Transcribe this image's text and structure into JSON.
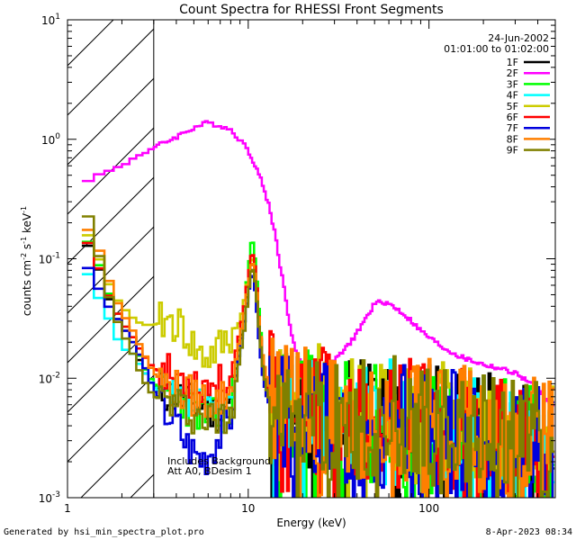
{
  "chart_data": {
    "type": "line",
    "title": "Count Spectra for RHESSI Front Segments",
    "xlabel": "Energy (keV)",
    "ylabel_base": "counts cm",
    "ylabel_exp1": "-2",
    "ylabel_mid": " s",
    "ylabel_exp2": "-1",
    "ylabel_end": " keV",
    "ylabel_exp3": "-1",
    "x_scale": "log",
    "y_scale": "log",
    "xlim": [
      1,
      500
    ],
    "ylim": [
      0.001,
      10
    ],
    "x_ticks": [
      {
        "value": 1,
        "label": "1"
      },
      {
        "value": 10,
        "label": "10"
      },
      {
        "value": 100,
        "label": "100"
      }
    ],
    "y_ticks": [
      {
        "value": 0.001,
        "base": "10",
        "exp": "-3"
      },
      {
        "value": 0.01,
        "base": "10",
        "exp": "-2"
      },
      {
        "value": 0.1,
        "base": "10",
        "exp": "-1"
      },
      {
        "value": 1,
        "base": "10",
        "exp": "0"
      },
      {
        "value": 10,
        "base": "10",
        "exp": "1"
      }
    ],
    "hatched_region_keV": [
      1,
      3
    ],
    "date": "24-Jun-2002",
    "time_range": "01:01:00 to 01:02:00",
    "annotation_lines": [
      "Includes Background",
      "Att A0, BDesim 1"
    ],
    "series": [
      {
        "name": "1F",
        "color": "#000000",
        "seed": 11,
        "base": 0.0,
        "x": [
          1.2,
          1.4,
          1.6,
          1.8,
          2.0,
          2.3,
          2.6,
          3.0,
          3.5,
          4.0,
          4.5,
          5.0,
          5.5,
          6.0,
          7.0,
          8.0,
          9.0,
          9.5,
          10.0,
          10.5,
          11.0,
          11.5,
          12.0,
          12.5,
          13.0,
          14.0,
          16.0,
          20.0,
          30.0,
          40.0,
          60.0,
          80.0,
          100.0,
          150.0,
          200.0,
          300.0,
          400.0,
          500.0
        ],
        "y": [
          0.15,
          0.11,
          0.06,
          0.035,
          0.028,
          0.02,
          0.012,
          0.0085,
          0.0075,
          0.007,
          0.0065,
          0.006,
          0.0058,
          0.0055,
          0.0052,
          0.006,
          0.02,
          0.03,
          0.06,
          0.1,
          0.07,
          0.03,
          0.015,
          0.01,
          0.008,
          0.0065,
          0.006,
          0.0055,
          0.005,
          0.0048,
          0.0045,
          0.0042,
          0.004,
          0.0035,
          0.0032,
          0.003,
          0.0028,
          0.0026
        ]
      },
      {
        "name": "2F",
        "color": "#ff00ff",
        "seed": 0,
        "base": 0.0,
        "x": [
          1.2,
          1.5,
          2.0,
          2.5,
          3.0,
          3.5,
          4.0,
          5.0,
          6.0,
          7.0,
          8.0,
          9.0,
          10.0,
          11.0,
          12.0,
          13.0,
          14.0,
          15.0,
          16.0,
          17.0,
          18.0,
          20.0,
          22.0,
          25.0,
          30.0,
          35.0,
          40.0,
          45.0,
          50.0,
          55.0,
          60.0,
          70.0,
          80.0,
          90.0,
          100.0,
          120.0,
          150.0,
          200.0,
          250.0,
          300.0,
          350.0,
          400.0,
          450.0,
          500.0
        ],
        "y": [
          0.45,
          0.5,
          0.6,
          0.75,
          0.85,
          0.95,
          1.05,
          1.25,
          1.38,
          1.3,
          1.2,
          1.0,
          0.8,
          0.6,
          0.42,
          0.28,
          0.17,
          0.09,
          0.05,
          0.028,
          0.018,
          0.012,
          0.011,
          0.01,
          0.014,
          0.018,
          0.024,
          0.032,
          0.042,
          0.044,
          0.042,
          0.036,
          0.03,
          0.025,
          0.022,
          0.018,
          0.015,
          0.013,
          0.012,
          0.011,
          0.0095,
          0.008,
          0.0068,
          0.0058
        ]
      },
      {
        "name": "3F",
        "color": "#00ff00",
        "seed": 23,
        "base": 0.0,
        "x": [
          1.2,
          1.4,
          1.6,
          1.8,
          2.0,
          2.3,
          2.6,
          3.0,
          3.5,
          4.0,
          4.5,
          5.0,
          5.5,
          6.0,
          7.0,
          8.0,
          9.0,
          9.5,
          10.0,
          10.5,
          11.0,
          11.5,
          12.0,
          12.5,
          13.0,
          14.0,
          16.0,
          20.0,
          30.0,
          40.0,
          60.0,
          80.0,
          100.0,
          150.0,
          200.0,
          300.0,
          400.0,
          500.0
        ],
        "y": [
          0.16,
          0.12,
          0.065,
          0.04,
          0.03,
          0.022,
          0.013,
          0.009,
          0.0075,
          0.007,
          0.006,
          0.0055,
          0.005,
          0.0048,
          0.0045,
          0.006,
          0.025,
          0.04,
          0.08,
          0.16,
          0.09,
          0.035,
          0.016,
          0.01,
          0.0075,
          0.006,
          0.0055,
          0.005,
          0.0048,
          0.0046,
          0.0043,
          0.004,
          0.0038,
          0.0034,
          0.0031,
          0.0029,
          0.0027,
          0.0025
        ]
      },
      {
        "name": "4F",
        "color": "#00ffff",
        "seed": 37,
        "base": 0.0,
        "x": [
          1.2,
          1.4,
          1.6,
          1.8,
          2.0,
          2.3,
          2.6,
          3.0,
          3.5,
          4.0,
          4.5,
          5.0,
          5.5,
          6.0,
          7.0,
          8.0,
          9.0,
          9.5,
          10.0,
          10.5,
          11.0,
          11.5,
          12.0,
          12.5,
          13.0,
          14.0,
          16.0,
          20.0,
          30.0,
          40.0,
          60.0,
          80.0,
          100.0,
          150.0,
          200.0,
          300.0,
          400.0,
          500.0
        ],
        "y": [
          0.1,
          0.055,
          0.04,
          0.025,
          0.018,
          0.016,
          0.012,
          0.0085,
          0.007,
          0.0065,
          0.006,
          0.0058,
          0.0055,
          0.0052,
          0.005,
          0.006,
          0.018,
          0.03,
          0.055,
          0.09,
          0.06,
          0.028,
          0.014,
          0.009,
          0.007,
          0.006,
          0.0055,
          0.005,
          0.0047,
          0.0045,
          0.0042,
          0.004,
          0.0037,
          0.0033,
          0.003,
          0.0028,
          0.0026,
          0.0024
        ]
      },
      {
        "name": "5F",
        "color": "#cccc00",
        "seed": 41,
        "base": 0.0,
        "x": [
          1.2,
          1.4,
          1.6,
          1.8,
          2.0,
          2.3,
          2.6,
          3.0,
          3.5,
          4.0,
          4.5,
          5.0,
          5.5,
          6.0,
          7.0,
          8.0,
          9.0,
          9.5,
          10.0,
          10.5,
          11.0,
          11.5,
          12.0,
          12.5,
          13.0,
          14.0,
          16.0,
          20.0,
          30.0,
          40.0,
          60.0,
          80.0,
          100.0,
          150.0,
          200.0,
          300.0,
          400.0,
          500.0
        ],
        "y": [
          0.19,
          0.13,
          0.075,
          0.05,
          0.04,
          0.032,
          0.028,
          0.028,
          0.03,
          0.029,
          0.024,
          0.018,
          0.015,
          0.015,
          0.018,
          0.022,
          0.03,
          0.045,
          0.07,
          0.11,
          0.07,
          0.03,
          0.015,
          0.01,
          0.008,
          0.0068,
          0.0063,
          0.0058,
          0.0053,
          0.005,
          0.0047,
          0.0044,
          0.0041,
          0.0037,
          0.0034,
          0.0031,
          0.0029,
          0.0027
        ]
      },
      {
        "name": "6F",
        "color": "#ff0000",
        "seed": 53,
        "base": 0.0,
        "x": [
          1.2,
          1.4,
          1.6,
          1.8,
          2.0,
          2.3,
          2.6,
          3.0,
          3.5,
          4.0,
          4.5,
          5.0,
          5.5,
          6.0,
          7.0,
          8.0,
          9.0,
          9.5,
          10.0,
          10.5,
          11.0,
          11.5,
          12.0,
          12.5,
          13.0,
          14.0,
          16.0,
          20.0,
          30.0,
          40.0,
          60.0,
          80.0,
          100.0,
          150.0,
          200.0,
          300.0,
          400.0,
          500.0
        ],
        "y": [
          0.16,
          0.115,
          0.06,
          0.04,
          0.03,
          0.022,
          0.016,
          0.012,
          0.011,
          0.0105,
          0.01,
          0.0098,
          0.009,
          0.009,
          0.009,
          0.01,
          0.025,
          0.04,
          0.07,
          0.12,
          0.08,
          0.03,
          0.014,
          0.009,
          0.0075,
          0.0063,
          0.0058,
          0.0054,
          0.005,
          0.0047,
          0.0044,
          0.0041,
          0.0038,
          0.0034,
          0.0031,
          0.0029,
          0.0027,
          0.0025
        ]
      },
      {
        "name": "7F",
        "color": "#0000dd",
        "seed": 67,
        "base": 0.0,
        "x": [
          1.2,
          1.4,
          1.6,
          1.8,
          2.0,
          2.3,
          2.6,
          3.0,
          3.5,
          4.0,
          4.5,
          5.0,
          5.5,
          6.0,
          7.0,
          8.0,
          9.0,
          9.5,
          10.0,
          10.5,
          11.0,
          11.5,
          12.0,
          12.5,
          13.0,
          14.0,
          16.0,
          20.0,
          30.0,
          40.0,
          60.0,
          80.0,
          100.0,
          150.0,
          200.0,
          300.0,
          400.0,
          500.0
        ],
        "y": [
          0.1,
          0.07,
          0.045,
          0.035,
          0.028,
          0.02,
          0.014,
          0.008,
          0.0055,
          0.0045,
          0.003,
          0.0025,
          0.0022,
          0.0024,
          0.0035,
          0.005,
          0.018,
          0.03,
          0.05,
          0.08,
          0.05,
          0.02,
          0.011,
          0.0075,
          0.0062,
          0.0055,
          0.005,
          0.0047,
          0.0045,
          0.0043,
          0.004,
          0.0038,
          0.0036,
          0.0032,
          0.003,
          0.0028,
          0.0026,
          0.0024
        ]
      },
      {
        "name": "8F",
        "color": "#ff7f00",
        "seed": 79,
        "base": 0.0,
        "x": [
          1.2,
          1.4,
          1.6,
          1.8,
          2.0,
          2.3,
          2.6,
          3.0,
          3.5,
          4.0,
          4.5,
          5.0,
          5.5,
          6.0,
          7.0,
          8.0,
          9.0,
          9.5,
          10.0,
          10.5,
          11.0,
          11.5,
          12.0,
          12.5,
          13.0,
          14.0,
          16.0,
          20.0,
          30.0,
          40.0,
          60.0,
          80.0,
          100.0,
          150.0,
          200.0,
          300.0,
          400.0,
          500.0
        ],
        "y": [
          0.19,
          0.16,
          0.085,
          0.05,
          0.036,
          0.025,
          0.017,
          0.011,
          0.009,
          0.008,
          0.0075,
          0.007,
          0.0068,
          0.0065,
          0.0065,
          0.008,
          0.022,
          0.035,
          0.06,
          0.1,
          0.07,
          0.03,
          0.016,
          0.011,
          0.0085,
          0.007,
          0.0064,
          0.0058,
          0.0053,
          0.005,
          0.0047,
          0.0044,
          0.0041,
          0.0037,
          0.0034,
          0.0032,
          0.003,
          0.0028
        ]
      },
      {
        "name": "9F",
        "color": "#808000",
        "seed": 97,
        "base": 0.0,
        "x": [
          1.2,
          1.4,
          1.6,
          1.8,
          2.0,
          2.3,
          2.6,
          3.0,
          3.5,
          4.0,
          4.5,
          5.0,
          5.5,
          6.0,
          7.0,
          8.0,
          9.0,
          9.5,
          10.0,
          10.5,
          11.0,
          11.5,
          12.0,
          12.5,
          13.0,
          14.0,
          16.0,
          20.0,
          30.0,
          40.0,
          60.0,
          80.0,
          100.0,
          150.0,
          200.0,
          300.0,
          400.0,
          500.0
        ],
        "y": [
          0.3,
          0.17,
          0.065,
          0.035,
          0.025,
          0.016,
          0.01,
          0.007,
          0.0065,
          0.006,
          0.0055,
          0.005,
          0.0048,
          0.0046,
          0.0045,
          0.005,
          0.015,
          0.025,
          0.05,
          0.09,
          0.06,
          0.025,
          0.013,
          0.0085,
          0.0068,
          0.006,
          0.0056,
          0.0052,
          0.0049,
          0.0047,
          0.0044,
          0.0041,
          0.0038,
          0.0034,
          0.0031,
          0.0029,
          0.0027,
          0.0025
        ]
      }
    ]
  },
  "footer": {
    "left": "Generated by hsi_min_spectra_plot.pro",
    "right": "8-Apr-2023 08:34"
  }
}
